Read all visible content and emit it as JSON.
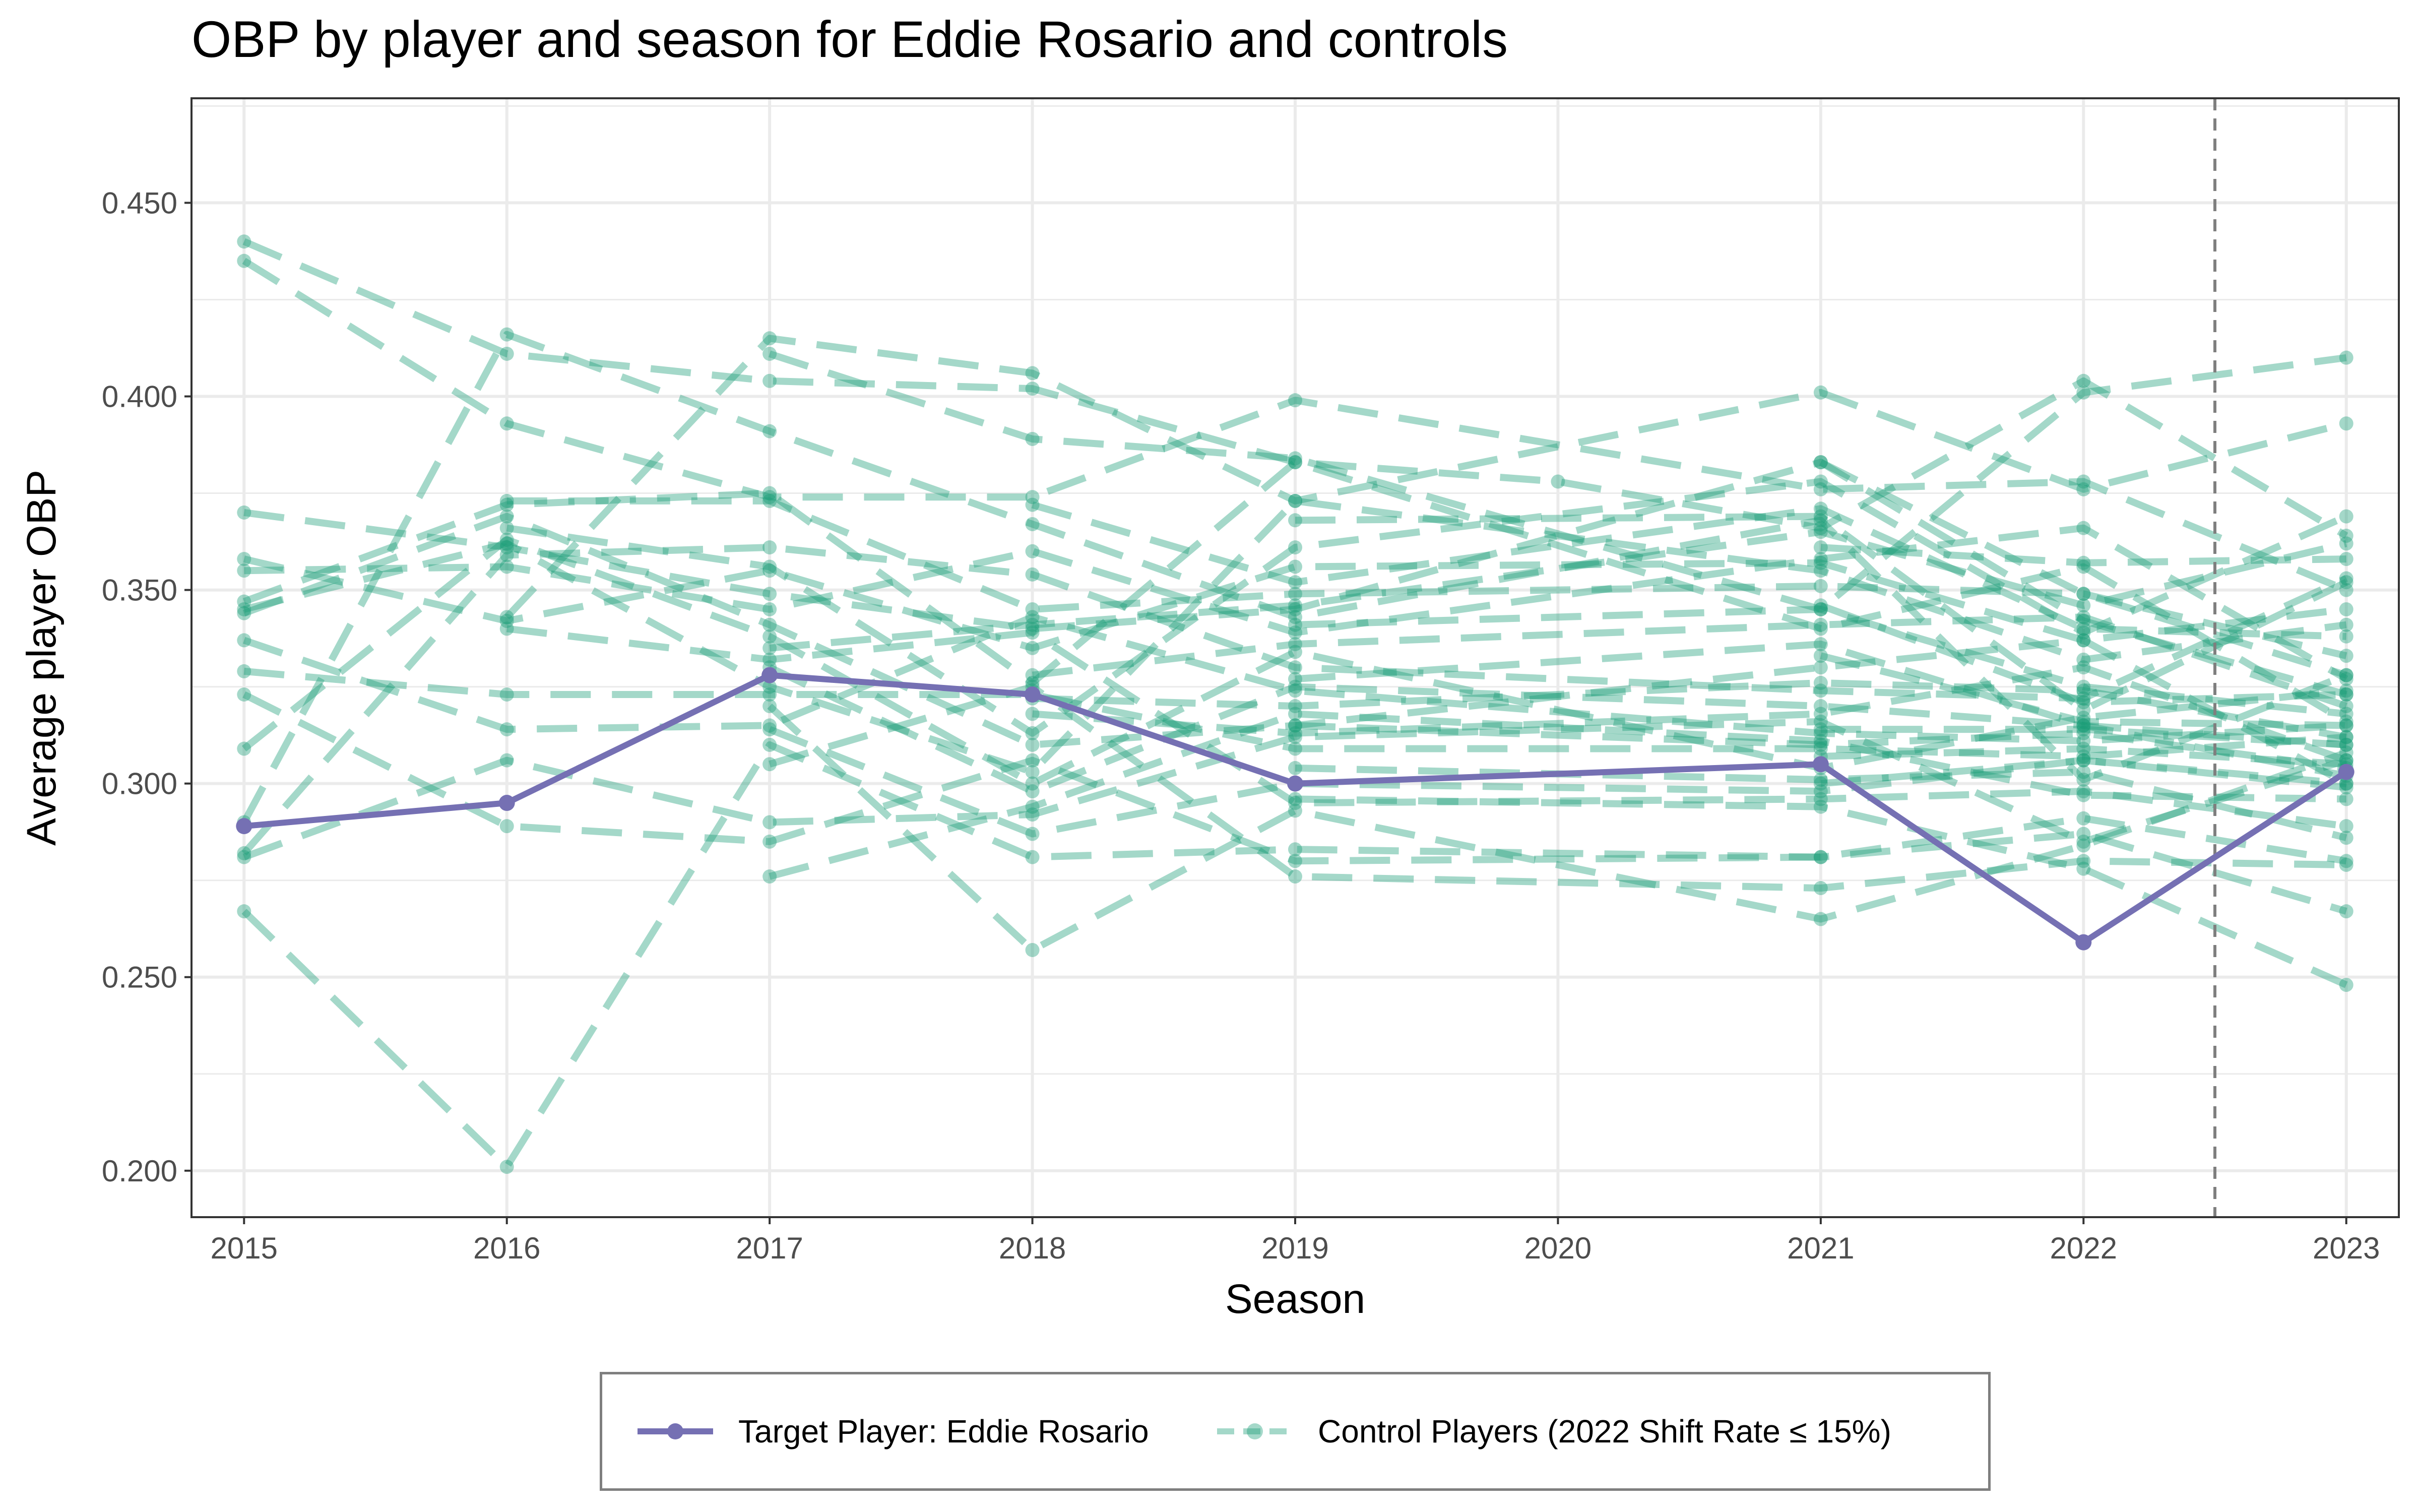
{
  "chart_data": {
    "type": "line",
    "title": "OBP by player and season for Eddie Rosario and controls",
    "xlabel": "Season",
    "ylabel": "Average player OBP",
    "xlim": [
      2014.8,
      2023.2
    ],
    "ylim": [
      0.188,
      0.477
    ],
    "x_ticks": [
      2015,
      2016,
      2017,
      2018,
      2019,
      2020,
      2021,
      2022,
      2023
    ],
    "x_tick_labels": [
      "2015",
      "2016",
      "2017",
      "2018",
      "2019",
      "2020",
      "2021",
      "2022",
      "2023"
    ],
    "y_ticks": [
      0.2,
      0.25,
      0.3,
      0.35,
      0.4,
      0.45
    ],
    "y_tick_labels": [
      "0.200",
      "0.250",
      "0.300",
      "0.350",
      "0.400",
      "0.450"
    ],
    "vline": 2022.5,
    "grid": true,
    "legend_position": "bottom",
    "colors": {
      "target": "#7570b3",
      "control": "#1b9e77",
      "vline": "#7f7f7f",
      "grid": "#ebebeb",
      "axis": "#333333"
    },
    "target_series": {
      "name": "Target Player: Eddie Rosario",
      "points": [
        [
          2015,
          0.289
        ],
        [
          2016,
          0.295
        ],
        [
          2017,
          0.328
        ],
        [
          2018,
          0.323
        ],
        [
          2019,
          0.3
        ],
        [
          2021,
          0.305
        ],
        [
          2022,
          0.259
        ],
        [
          2023,
          0.303
        ]
      ]
    },
    "control_legend_name": "Control Players (2022 Shift Rate ≤ 15%)",
    "control_series": [
      [
        [
          2015,
          0.44
        ],
        [
          2016,
          0.411
        ],
        [
          2017,
          0.404
        ],
        [
          2018,
          0.402
        ],
        [
          2019,
          0.383
        ],
        [
          2020,
          0.378
        ],
        [
          2021,
          0.366
        ],
        [
          2022,
          0.404
        ],
        [
          2023,
          0.364
        ]
      ],
      [
        [
          2015,
          0.435
        ],
        [
          2016,
          0.393
        ],
        [
          2017,
          0.374
        ],
        [
          2018,
          0.374
        ],
        [
          2019,
          0.399
        ],
        [
          2021,
          0.376
        ],
        [
          2022,
          0.378
        ],
        [
          2023,
          0.35
        ]
      ],
      [
        [
          2015,
          0.37
        ],
        [
          2016,
          0.361
        ],
        [
          2017,
          0.349
        ],
        [
          2018,
          0.34
        ],
        [
          2019,
          0.345
        ],
        [
          2021,
          0.383
        ],
        [
          2022,
          0.342
        ],
        [
          2023,
          0.323
        ]
      ],
      [
        [
          2015,
          0.358
        ],
        [
          2016,
          0.342
        ],
        [
          2017,
          0.355
        ],
        [
          2018,
          0.335
        ],
        [
          2019,
          0.356
        ],
        [
          2021,
          0.357
        ],
        [
          2022,
          0.337
        ],
        [
          2023,
          0.345
        ]
      ],
      [
        [
          2015,
          0.355
        ],
        [
          2016,
          0.356
        ],
        [
          2017,
          0.345
        ],
        [
          2018,
          0.36
        ],
        [
          2019,
          0.339
        ],
        [
          2021,
          0.358
        ],
        [
          2022,
          0.366
        ],
        [
          2023,
          0.327
        ]
      ],
      [
        [
          2015,
          0.347
        ],
        [
          2016,
          0.372
        ],
        [
          2017,
          0.375
        ],
        [
          2018,
          0.326
        ],
        [
          2019,
          0.383
        ],
        [
          2021,
          0.34
        ],
        [
          2022,
          0.356
        ],
        [
          2023,
          0.316
        ]
      ],
      [
        [
          2015,
          0.345
        ],
        [
          2016,
          0.362
        ],
        [
          2017,
          0.325
        ],
        [
          2018,
          0.303
        ],
        [
          2019,
          0.373
        ],
        [
          2021,
          0.355
        ],
        [
          2022,
          0.332
        ],
        [
          2023,
          0.341
        ]
      ],
      [
        [
          2015,
          0.344
        ],
        [
          2016,
          0.369
        ],
        [
          2017,
          0.341
        ],
        [
          2018,
          0.31
        ],
        [
          2019,
          0.315
        ],
        [
          2021,
          0.33
        ],
        [
          2022,
          0.337
        ],
        [
          2023,
          0.3
        ]
      ],
      [
        [
          2015,
          0.337
        ],
        [
          2016,
          0.314
        ],
        [
          2017,
          0.315
        ],
        [
          2018,
          0.343
        ],
        [
          2019,
          0.324
        ],
        [
          2021,
          0.313
        ],
        [
          2022,
          0.311
        ],
        [
          2023,
          0.315
        ]
      ],
      [
        [
          2015,
          0.329
        ],
        [
          2016,
          0.323
        ],
        [
          2017,
          0.323
        ],
        [
          2018,
          0.323
        ],
        [
          2019,
          0.309
        ],
        [
          2021,
          0.309
        ],
        [
          2022,
          0.307
        ],
        [
          2023,
          0.312
        ]
      ],
      [
        [
          2015,
          0.323
        ],
        [
          2016,
          0.289
        ],
        [
          2017,
          0.285
        ],
        [
          2018,
          0.306
        ],
        [
          2019,
          0.28
        ],
        [
          2021,
          0.281
        ],
        [
          2022,
          0.291
        ],
        [
          2023,
          0.28
        ]
      ],
      [
        [
          2015,
          0.309
        ],
        [
          2016,
          0.363
        ],
        [
          2017,
          0.338
        ],
        [
          2018,
          0.3
        ],
        [
          2019,
          0.334
        ],
        [
          2021,
          0.304
        ],
        [
          2022,
          0.317
        ],
        [
          2023,
          0.324
        ]
      ],
      [
        [
          2015,
          0.29
        ],
        [
          2016,
          0.416
        ],
        [
          2017,
          0.391
        ],
        [
          2018,
          0.367
        ],
        [
          2019,
          0.343
        ],
        [
          2021,
          0.368
        ],
        [
          2022,
          0.301
        ],
        [
          2023,
          0.328
        ]
      ],
      [
        [
          2015,
          0.282
        ],
        [
          2016,
          0.359
        ],
        [
          2017,
          0.361
        ],
        [
          2018,
          0.354
        ],
        [
          2019,
          0.33
        ],
        [
          2021,
          0.324
        ],
        [
          2022,
          0.322
        ],
        [
          2023,
          0.353
        ]
      ],
      [
        [
          2015,
          0.281
        ],
        [
          2016,
          0.306
        ],
        [
          2017,
          0.29
        ],
        [
          2018,
          0.292
        ],
        [
          2019,
          0.312
        ],
        [
          2021,
          0.316
        ],
        [
          2022,
          0.285
        ],
        [
          2023,
          0.306
        ]
      ],
      [
        [
          2015,
          0.267
        ],
        [
          2016,
          0.201
        ],
        [
          2017,
          0.31
        ],
        [
          2018,
          0.281
        ],
        [
          2019,
          0.283
        ],
        [
          2021,
          0.281
        ],
        [
          2022,
          0.287
        ],
        [
          2023,
          0.267
        ]
      ],
      [
        [
          2016,
          0.373
        ],
        [
          2017,
          0.373
        ],
        [
          2018,
          0.345
        ],
        [
          2019,
          0.349
        ],
        [
          2021,
          0.351
        ],
        [
          2022,
          0.349
        ],
        [
          2023,
          0.333
        ]
      ],
      [
        [
          2016,
          0.366
        ],
        [
          2017,
          0.356
        ],
        [
          2018,
          0.313
        ],
        [
          2019,
          0.361
        ],
        [
          2021,
          0.378
        ],
        [
          2022,
          0.339
        ],
        [
          2023,
          0.369
        ]
      ],
      [
        [
          2016,
          0.343
        ],
        [
          2017,
          0.415
        ],
        [
          2018,
          0.406
        ],
        [
          2019,
          0.373
        ],
        [
          2021,
          0.401
        ],
        [
          2022,
          0.376
        ],
        [
          2023,
          0.393
        ]
      ],
      [
        [
          2016,
          0.34
        ],
        [
          2017,
          0.332
        ],
        [
          2018,
          0.339
        ],
        [
          2019,
          0.295
        ],
        [
          2021,
          0.296
        ],
        [
          2022,
          0.298
        ],
        [
          2023,
          0.289
        ]
      ],
      [
        [
          2017,
          0.411
        ],
        [
          2018,
          0.389
        ],
        [
          2019,
          0.384
        ],
        [
          2021,
          0.345
        ],
        [
          2022,
          0.401
        ],
        [
          2023,
          0.41
        ]
      ],
      [
        [
          2017,
          0.335
        ],
        [
          2018,
          0.341
        ],
        [
          2019,
          0.346
        ],
        [
          2021,
          0.365
        ],
        [
          2022,
          0.346
        ],
        [
          2023,
          0.362
        ]
      ],
      [
        [
          2017,
          0.33
        ],
        [
          2018,
          0.298
        ],
        [
          2019,
          0.325
        ],
        [
          2021,
          0.32
        ],
        [
          2022,
          0.315
        ],
        [
          2023,
          0.302
        ]
      ],
      [
        [
          2017,
          0.32
        ],
        [
          2018,
          0.257
        ],
        [
          2019,
          0.293
        ],
        [
          2021,
          0.265
        ],
        [
          2022,
          0.284
        ],
        [
          2023,
          0.308
        ]
      ],
      [
        [
          2017,
          0.314
        ],
        [
          2018,
          0.287
        ],
        [
          2019,
          0.3
        ],
        [
          2021,
          0.298
        ],
        [
          2022,
          0.306
        ],
        [
          2023,
          0.3
        ]
      ],
      [
        [
          2017,
          0.305
        ],
        [
          2018,
          0.325
        ],
        [
          2019,
          0.276
        ],
        [
          2021,
          0.273
        ],
        [
          2022,
          0.28
        ],
        [
          2023,
          0.279
        ]
      ],
      [
        [
          2017,
          0.276
        ],
        [
          2018,
          0.294
        ],
        [
          2019,
          0.318
        ],
        [
          2021,
          0.311
        ],
        [
          2022,
          0.297
        ],
        [
          2023,
          0.296
        ]
      ],
      [
        [
          2018,
          0.372
        ],
        [
          2019,
          0.352
        ],
        [
          2021,
          0.371
        ],
        [
          2022,
          0.34
        ],
        [
          2023,
          0.338
        ]
      ],
      [
        [
          2018,
          0.328
        ],
        [
          2019,
          0.336
        ],
        [
          2021,
          0.341
        ],
        [
          2022,
          0.343
        ],
        [
          2023,
          0.32
        ]
      ],
      [
        [
          2018,
          0.322
        ],
        [
          2019,
          0.32
        ],
        [
          2021,
          0.326
        ],
        [
          2022,
          0.324
        ],
        [
          2023,
          0.312
        ]
      ],
      [
        [
          2018,
          0.318
        ],
        [
          2019,
          0.313
        ],
        [
          2021,
          0.318
        ],
        [
          2022,
          0.33
        ],
        [
          2023,
          0.306
        ]
      ],
      [
        [
          2019,
          0.368
        ],
        [
          2021,
          0.369
        ],
        [
          2022,
          0.319
        ],
        [
          2023,
          0.352
        ]
      ],
      [
        [
          2019,
          0.341
        ],
        [
          2021,
          0.345
        ],
        [
          2022,
          0.325
        ],
        [
          2023,
          0.318
        ]
      ],
      [
        [
          2019,
          0.327
        ],
        [
          2021,
          0.336
        ],
        [
          2022,
          0.315
        ],
        [
          2023,
          0.31
        ]
      ],
      [
        [
          2019,
          0.315
        ],
        [
          2021,
          0.31
        ],
        [
          2022,
          0.313
        ],
        [
          2023,
          0.304
        ]
      ],
      [
        [
          2019,
          0.304
        ],
        [
          2021,
          0.301
        ],
        [
          2022,
          0.303
        ],
        [
          2023,
          0.286
        ]
      ],
      [
        [
          2019,
          0.296
        ],
        [
          2021,
          0.294
        ],
        [
          2022,
          0.278
        ],
        [
          2023,
          0.248
        ]
      ],
      [
        [
          2021,
          0.383
        ],
        [
          2022,
          0.349
        ],
        [
          2023,
          0.328
        ]
      ],
      [
        [
          2021,
          0.361
        ],
        [
          2022,
          0.357
        ],
        [
          2023,
          0.358
        ]
      ],
      [
        [
          2021,
          0.346
        ],
        [
          2022,
          0.321
        ],
        [
          2023,
          0.323
        ]
      ],
      [
        [
          2021,
          0.333
        ],
        [
          2022,
          0.316
        ],
        [
          2023,
          0.315
        ]
      ],
      [
        [
          2021,
          0.314
        ],
        [
          2022,
          0.314
        ],
        [
          2023,
          0.31
        ]
      ],
      [
        [
          2021,
          0.307
        ],
        [
          2022,
          0.309
        ],
        [
          2023,
          0.305
        ]
      ],
      [
        [
          2021,
          0.3
        ],
        [
          2022,
          0.306
        ],
        [
          2023,
          0.299
        ]
      ]
    ]
  }
}
